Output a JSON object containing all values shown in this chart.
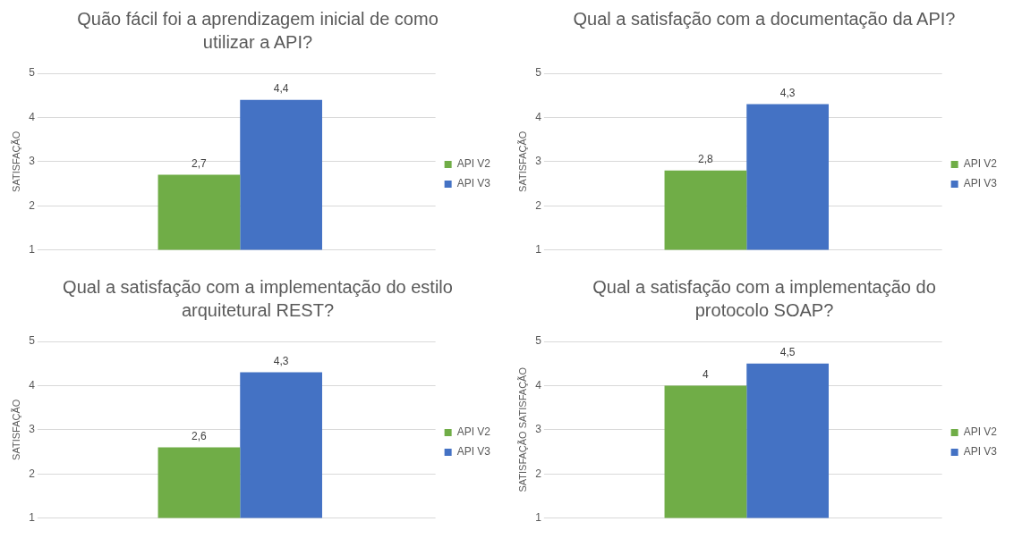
{
  "chart_data": [
    {
      "type": "bar",
      "title": "Quão fácil foi a aprendizagem inicial de como utilizar a API?",
      "ylabel": "SATISFAÇÃO",
      "categories": [
        null
      ],
      "series": [
        {
          "name": "API V2",
          "color": "#70ad47",
          "values": [
            2.7
          ],
          "value_labels": [
            "2,7"
          ]
        },
        {
          "name": "API V3",
          "color": "#4472c4",
          "values": [
            4.4
          ],
          "value_labels": [
            "4,4"
          ]
        }
      ],
      "ylim": [
        1,
        5
      ],
      "yticks": [
        1,
        2,
        3,
        4,
        5
      ],
      "grid": "y",
      "legend": "right"
    },
    {
      "type": "bar",
      "title": "Qual a satisfação com a documentação da API?",
      "ylabel": "SATISFAÇÃO",
      "categories": [
        null
      ],
      "series": [
        {
          "name": "API V2",
          "color": "#70ad47",
          "values": [
            2.8
          ],
          "value_labels": [
            "2,8"
          ]
        },
        {
          "name": "API V3",
          "color": "#4472c4",
          "values": [
            4.3
          ],
          "value_labels": [
            "4,3"
          ]
        }
      ],
      "ylim": [
        1,
        5
      ],
      "yticks": [
        1,
        2,
        3,
        4,
        5
      ],
      "grid": "y",
      "legend": "right"
    },
    {
      "type": "bar",
      "title": "Qual a satisfação com a implementação do estilo arquitetural REST?",
      "ylabel": "SATISFAÇÃO",
      "categories": [
        null
      ],
      "series": [
        {
          "name": "API V2",
          "color": "#70ad47",
          "values": [
            2.6
          ],
          "value_labels": [
            "2,6"
          ]
        },
        {
          "name": "API V3",
          "color": "#4472c4",
          "values": [
            4.3
          ],
          "value_labels": [
            "4,3"
          ]
        }
      ],
      "ylim": [
        1,
        5
      ],
      "yticks": [
        1,
        2,
        3,
        4,
        5
      ],
      "grid": "y",
      "legend": "right"
    },
    {
      "type": "bar",
      "title": "Qual a satisfação com a implementação do protocolo SOAP?",
      "ylabel": "SATISFAÇÃO SATISFAÇÃO",
      "categories": [
        null
      ],
      "series": [
        {
          "name": "API V2",
          "color": "#70ad47",
          "values": [
            4
          ],
          "value_labels": [
            "4"
          ]
        },
        {
          "name": "API V3",
          "color": "#4472c4",
          "values": [
            4.5
          ],
          "value_labels": [
            "4,5"
          ]
        }
      ],
      "ylim": [
        1,
        5
      ],
      "yticks": [
        1,
        2,
        3,
        4,
        5
      ],
      "grid": "y",
      "legend": "right"
    }
  ]
}
